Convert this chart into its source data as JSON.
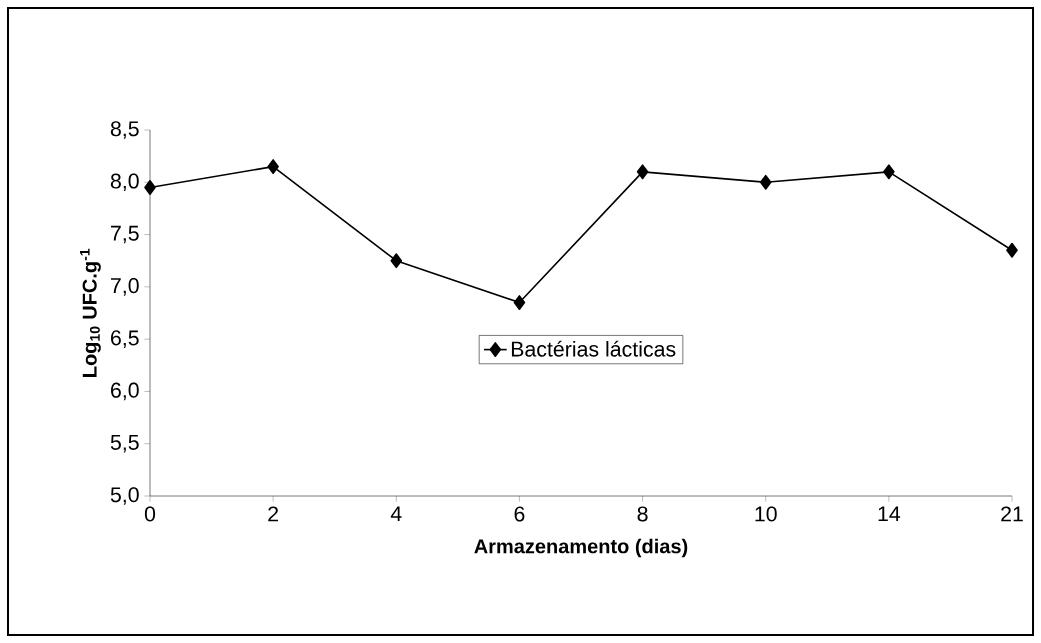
{
  "chart_data": {
    "type": "line",
    "xlabel": "Armazenamento (dias)",
    "ylabel": "Log$_{10}$ UFC.g$^{-1}$",
    "categories": [
      "0",
      "2",
      "4",
      "6",
      "8",
      "10",
      "14",
      "21"
    ],
    "series": [
      {
        "name": "Bactérias lácticas",
        "color": "#000000",
        "values": [
          7.95,
          8.15,
          7.25,
          6.85,
          8.1,
          8.0,
          8.1,
          7.35
        ]
      }
    ],
    "ylim": [
      5.0,
      8.5
    ],
    "yticks": [
      {
        "value": 5.0,
        "label": "5,0"
      },
      {
        "value": 5.5,
        "label": "5,5"
      },
      {
        "value": 6.0,
        "label": "6,0"
      },
      {
        "value": 6.5,
        "label": "6,5"
      },
      {
        "value": 7.0,
        "label": "7,0"
      },
      {
        "value": 7.5,
        "label": "7,5"
      },
      {
        "value": 8.0,
        "label": "8,0"
      },
      {
        "value": 8.5,
        "label": "8,5"
      }
    ],
    "legend": "center",
    "marker": "diamond",
    "line_style": "solid",
    "grid": false
  }
}
